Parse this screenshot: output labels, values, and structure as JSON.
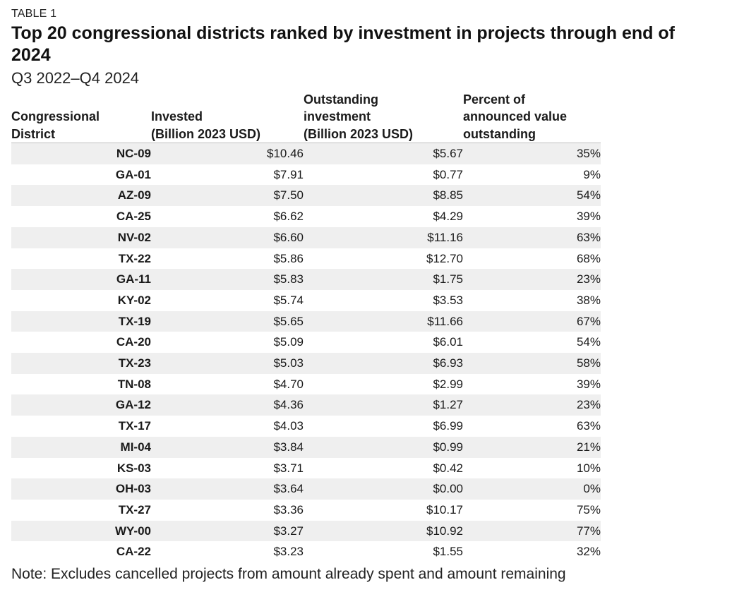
{
  "label": "TABLE 1",
  "title": "Top 20 congressional districts ranked by investment in projects through end of 2024",
  "subtitle": "Q3 2022–Q4 2024",
  "columns": {
    "district": [
      "Congressional",
      "District"
    ],
    "invested": [
      "Invested",
      "(Billion 2023 USD)"
    ],
    "outstanding": [
      "Outstanding",
      "investment",
      "(Billion 2023 USD)"
    ],
    "percent": [
      "Percent of",
      "announced value",
      "outstanding"
    ]
  },
  "rows": [
    {
      "district": "NC-09",
      "invested": "$10.46",
      "outstanding": "$5.67",
      "percent": "35%"
    },
    {
      "district": "GA-01",
      "invested": "$7.91",
      "outstanding": "$0.77",
      "percent": "9%"
    },
    {
      "district": "AZ-09",
      "invested": "$7.50",
      "outstanding": "$8.85",
      "percent": "54%"
    },
    {
      "district": "CA-25",
      "invested": "$6.62",
      "outstanding": "$4.29",
      "percent": "39%"
    },
    {
      "district": "NV-02",
      "invested": "$6.60",
      "outstanding": "$11.16",
      "percent": "63%"
    },
    {
      "district": "TX-22",
      "invested": "$5.86",
      "outstanding": "$12.70",
      "percent": "68%"
    },
    {
      "district": "GA-11",
      "invested": "$5.83",
      "outstanding": "$1.75",
      "percent": "23%"
    },
    {
      "district": "KY-02",
      "invested": "$5.74",
      "outstanding": "$3.53",
      "percent": "38%"
    },
    {
      "district": "TX-19",
      "invested": "$5.65",
      "outstanding": "$11.66",
      "percent": "67%"
    },
    {
      "district": "CA-20",
      "invested": "$5.09",
      "outstanding": "$6.01",
      "percent": "54%"
    },
    {
      "district": "TX-23",
      "invested": "$5.03",
      "outstanding": "$6.93",
      "percent": "58%"
    },
    {
      "district": "TN-08",
      "invested": "$4.70",
      "outstanding": "$2.99",
      "percent": "39%"
    },
    {
      "district": "GA-12",
      "invested": "$4.36",
      "outstanding": "$1.27",
      "percent": "23%"
    },
    {
      "district": "TX-17",
      "invested": "$4.03",
      "outstanding": "$6.99",
      "percent": "63%"
    },
    {
      "district": "MI-04",
      "invested": "$3.84",
      "outstanding": "$0.99",
      "percent": "21%"
    },
    {
      "district": "KS-03",
      "invested": "$3.71",
      "outstanding": "$0.42",
      "percent": "10%"
    },
    {
      "district": "OH-03",
      "invested": "$3.64",
      "outstanding": "$0.00",
      "percent": "0%"
    },
    {
      "district": "TX-27",
      "invested": "$3.36",
      "outstanding": "$10.17",
      "percent": "75%"
    },
    {
      "district": "WY-00",
      "invested": "$3.27",
      "outstanding": "$10.92",
      "percent": "77%"
    },
    {
      "district": "CA-22",
      "invested": "$3.23",
      "outstanding": "$1.55",
      "percent": "32%"
    }
  ],
  "note": "Note: Excludes cancelled projects from amount already spent and amount remaining"
}
